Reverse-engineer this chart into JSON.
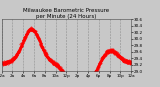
{
  "title": "Milwaukee Barometric Pressure\nper Minute (24 Hours)",
  "line_color": "#ff0000",
  "bg_color": "#c8c8c8",
  "plot_bg_color": "#c8c8c8",
  "grid_color": "#aaaaaa",
  "ylim": [
    29.0,
    30.6
  ],
  "ytick_values": [
    29.0,
    29.2,
    29.4,
    29.6,
    29.8,
    30.0,
    30.2,
    30.4,
    30.6
  ],
  "ytick_labels": [
    "29.0",
    "29.2",
    "29.4",
    "29.6",
    "29.8",
    "30.0",
    "30.2",
    "30.4",
    "30.6"
  ],
  "title_fontsize": 4.0,
  "tick_fontsize": 3.0,
  "num_points": 1440,
  "seed": 42
}
